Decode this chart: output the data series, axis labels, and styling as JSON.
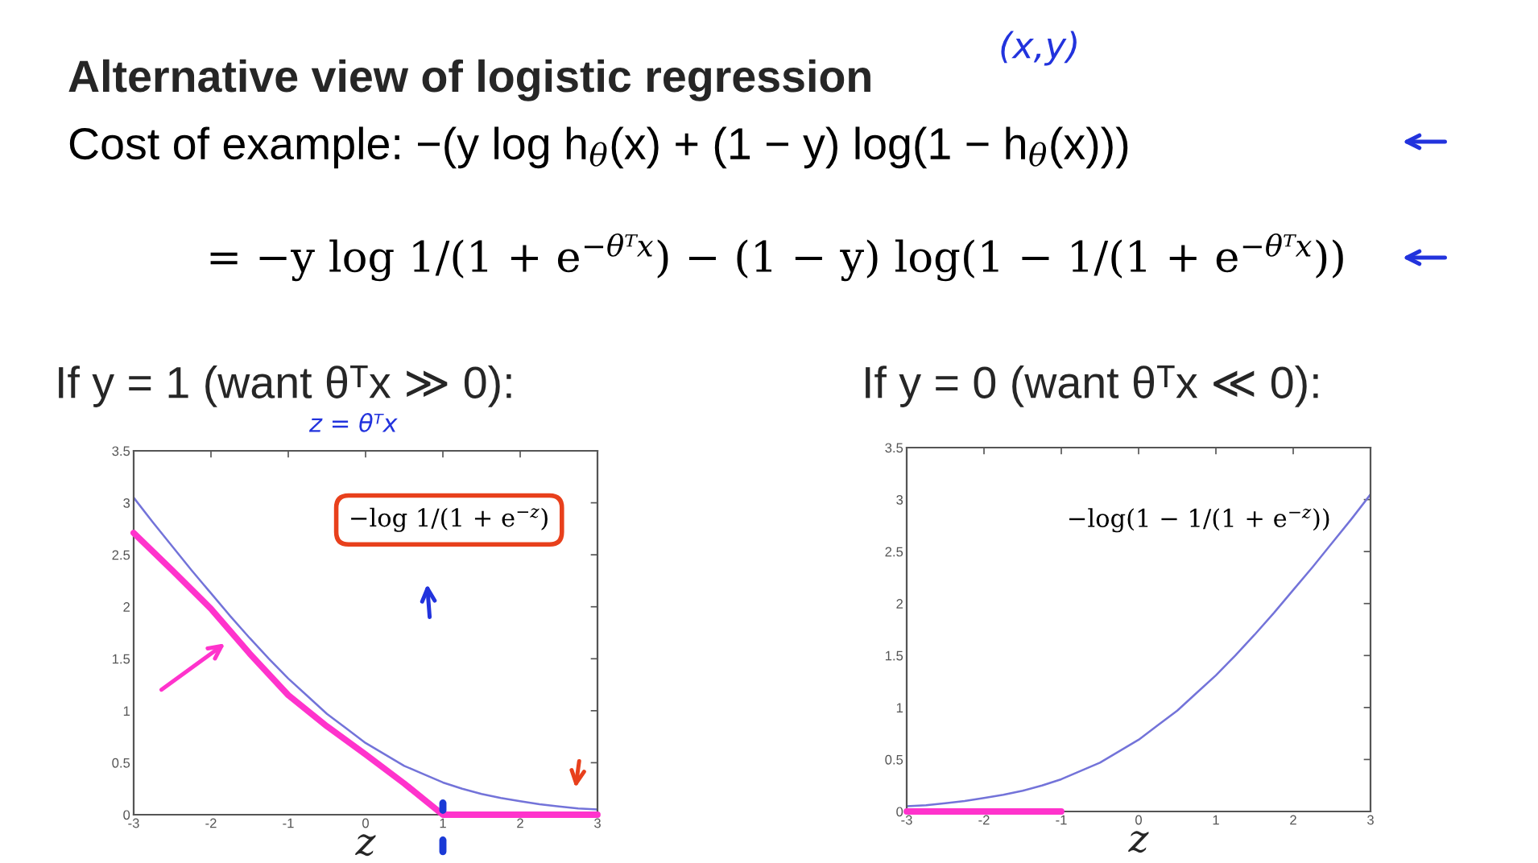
{
  "chart_data": [
    {
      "type": "line",
      "title": "Alternative view of logistic regression",
      "subtitle": "If y = 1 (want θᵀx ≫ 0):",
      "xlabel": "z",
      "annotations": [
        "(x,y)",
        "Cost of example: −(y log h$_{θ}$(x) + (1 − y) log(1 − h$_{θ}$(x)))",
        "= −y log 1/(1 + e$^{−θᵀx}$) − (1 − y) log(1 − 1/(1 + e$^{−θᵀx}$))",
        "z = θᵀx",
        "−log 1/(1 + e$^{−z}$)"
      ],
      "series": [
        {
          "color": "#7373d9",
          "x": [
            -3,
            -2.75,
            -2.5,
            -2.25,
            -2,
            -1.75,
            -1.5,
            -1.25,
            -1,
            -0.75,
            -0.5,
            -0.25,
            0,
            0.25,
            0.5,
            0.75,
            1,
            1.25,
            1.5,
            1.75,
            2,
            2.25,
            2.5,
            2.75,
            3
          ],
          "values": [
            3.05,
            2.81,
            2.58,
            2.35,
            2.13,
            1.91,
            1.7,
            1.5,
            1.31,
            1.14,
            0.97,
            0.83,
            0.69,
            0.58,
            0.47,
            0.39,
            0.31,
            0.25,
            0.2,
            0.16,
            0.13,
            0.1,
            0.08,
            0.06,
            0.05
          ]
        },
        {
          "color": "#ff33cc",
          "x": [
            -3,
            -2.5,
            -2,
            -1.5,
            -1,
            -0.5,
            0,
            0.5,
            0.8,
            1,
            3
          ],
          "values": [
            2.71,
            2.35,
            1.98,
            1.55,
            1.15,
            0.85,
            0.58,
            0.3,
            0.12,
            0,
            0
          ]
        }
      ],
      "xlim": [
        -3,
        3
      ],
      "ylim": [
        0,
        3.5
      ],
      "xticks": [
        -3,
        -2,
        -1,
        0,
        1,
        2,
        3
      ],
      "yticks": [
        0,
        0.5,
        1,
        1.5,
        2,
        2.5,
        3,
        3.5
      ]
    },
    {
      "type": "line",
      "subtitle": "If y = 0 (want θᵀx ≪ 0):",
      "xlabel": "z",
      "annotations": [
        "−log(1 − 1/(1 + e$^{−z}$))"
      ],
      "series": [
        {
          "color": "#7373d9",
          "x": [
            -3,
            -2.75,
            -2.5,
            -2.25,
            -2,
            -1.75,
            -1.5,
            -1.25,
            -1,
            -0.75,
            -0.5,
            -0.25,
            0,
            0.25,
            0.5,
            0.75,
            1,
            1.25,
            1.5,
            1.75,
            2,
            2.25,
            2.5,
            2.75,
            3
          ],
          "values": [
            0.05,
            0.06,
            0.08,
            0.1,
            0.13,
            0.16,
            0.2,
            0.25,
            0.31,
            0.39,
            0.47,
            0.58,
            0.69,
            0.83,
            0.97,
            1.14,
            1.31,
            1.5,
            1.7,
            1.91,
            2.13,
            2.35,
            2.58,
            2.81,
            3.05
          ]
        },
        {
          "color": "#ff33cc",
          "x": [
            -3,
            -1
          ],
          "values": [
            0,
            0
          ]
        }
      ],
      "xlim": [
        -3,
        3
      ],
      "ylim": [
        0,
        3.5
      ],
      "xticks": [
        -3,
        -2,
        -1,
        0,
        1,
        2,
        3
      ],
      "yticks": [
        0,
        0.5,
        1,
        1.5,
        2,
        2.5,
        3,
        3.5
      ]
    }
  ]
}
